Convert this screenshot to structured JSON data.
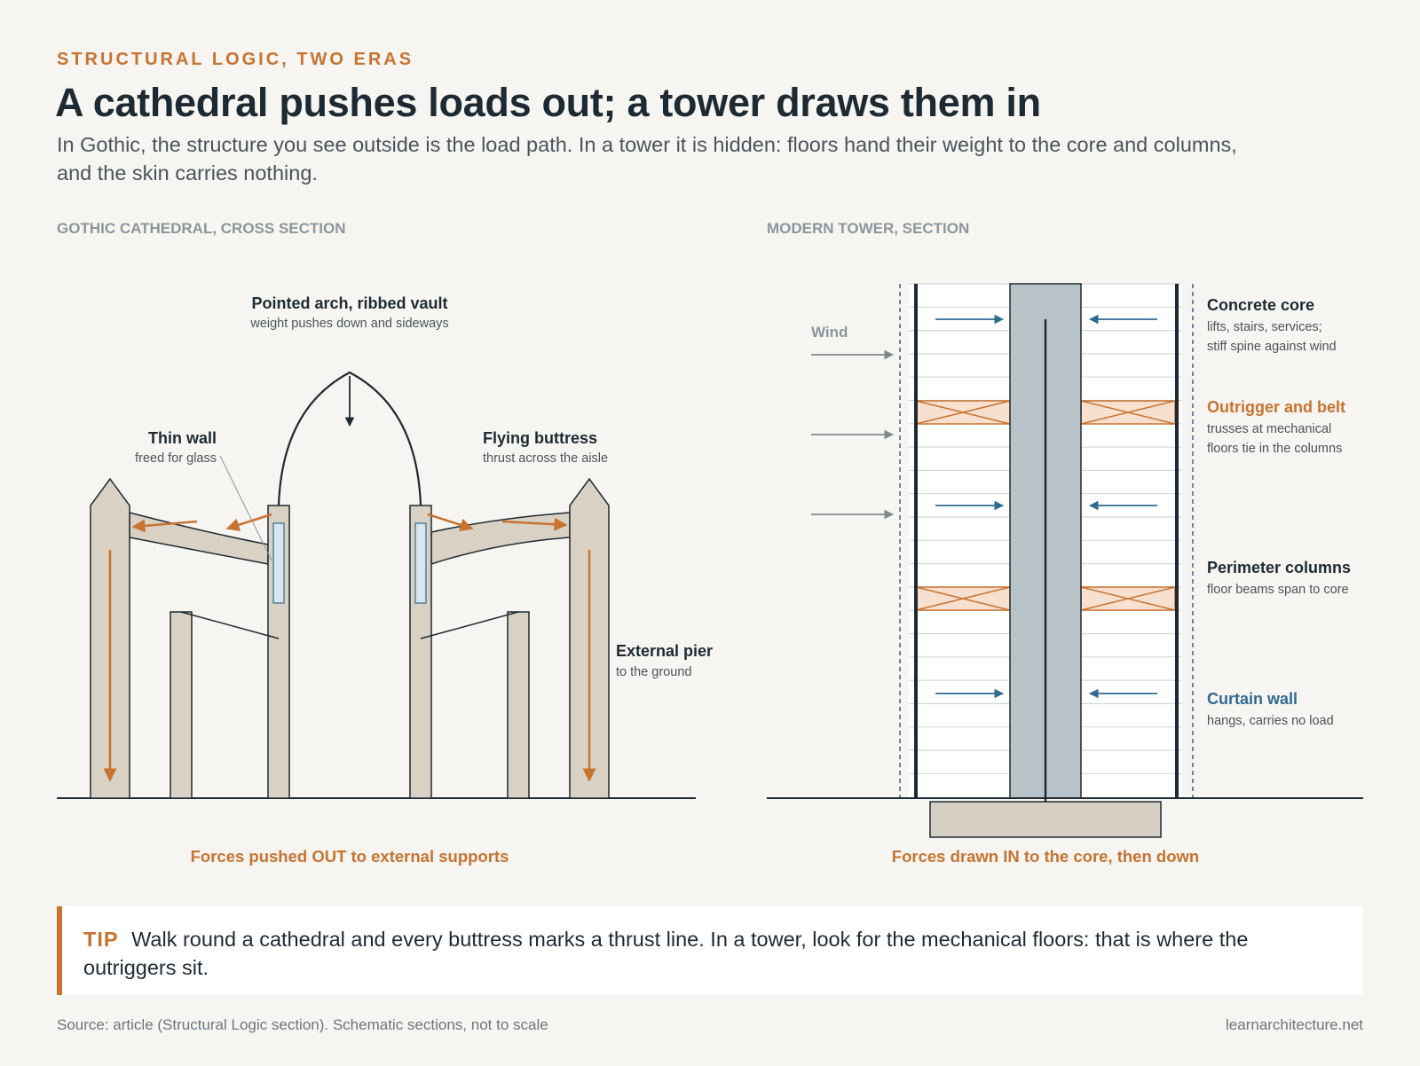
{
  "header": {
    "eyebrow": "STRUCTURAL LOGIC, TWO ERAS",
    "title": "A cathedral pushes loads out; a tower draws them in",
    "subtitle": "In Gothic, the structure you see outside is the load path. In a tower it is hidden: floors hand their weight to the core and columns, and the skin carries nothing."
  },
  "left_panel": {
    "label": "GOTHIC CATHEDRAL, CROSS SECTION",
    "annotations": {
      "arch_title": "Pointed arch, ribbed vault",
      "arch_sub": "weight pushes down and sideways",
      "wall_title": "Thin wall",
      "wall_sub": "freed for glass",
      "buttress_title": "Flying buttress",
      "buttress_sub": "thrust across the aisle",
      "pier_title": "External pier",
      "pier_sub": "to the ground"
    },
    "caption": "Forces pushed OUT to external supports"
  },
  "right_panel": {
    "label": "MODERN TOWER, SECTION",
    "wind_label": "Wind",
    "annotations": {
      "core_title": "Concrete core",
      "core_sub1": "lifts, stairs, services;",
      "core_sub2": "stiff spine against wind",
      "outrigger_title": "Outrigger and belt",
      "outrigger_sub1": "trusses at mechanical",
      "outrigger_sub2": "floors tie in the columns",
      "columns_title": "Perimeter columns",
      "columns_sub": "floor beams span to core",
      "curtain_title": "Curtain wall",
      "curtain_sub": "hangs, carries no load"
    },
    "caption": "Forces drawn IN to the core, then down"
  },
  "tip": {
    "key": "TIP",
    "text": "Walk round a cathedral and every buttress marks a thrust line. In a tower, look for the mechanical floors: that is where the outriggers sit."
  },
  "footer": {
    "source": "Source: article (Structural Logic section). Schematic sections, not to scale",
    "site": "learnarchitecture.net"
  },
  "colors": {
    "accent_orange": "#c8732f",
    "stone": "#d9d1c4",
    "ink": "#1e2a33",
    "core_grey": "#b8c3c9",
    "curtain_blue": "#2f6a8f",
    "outrigger_fill": "#f7e0d0"
  }
}
